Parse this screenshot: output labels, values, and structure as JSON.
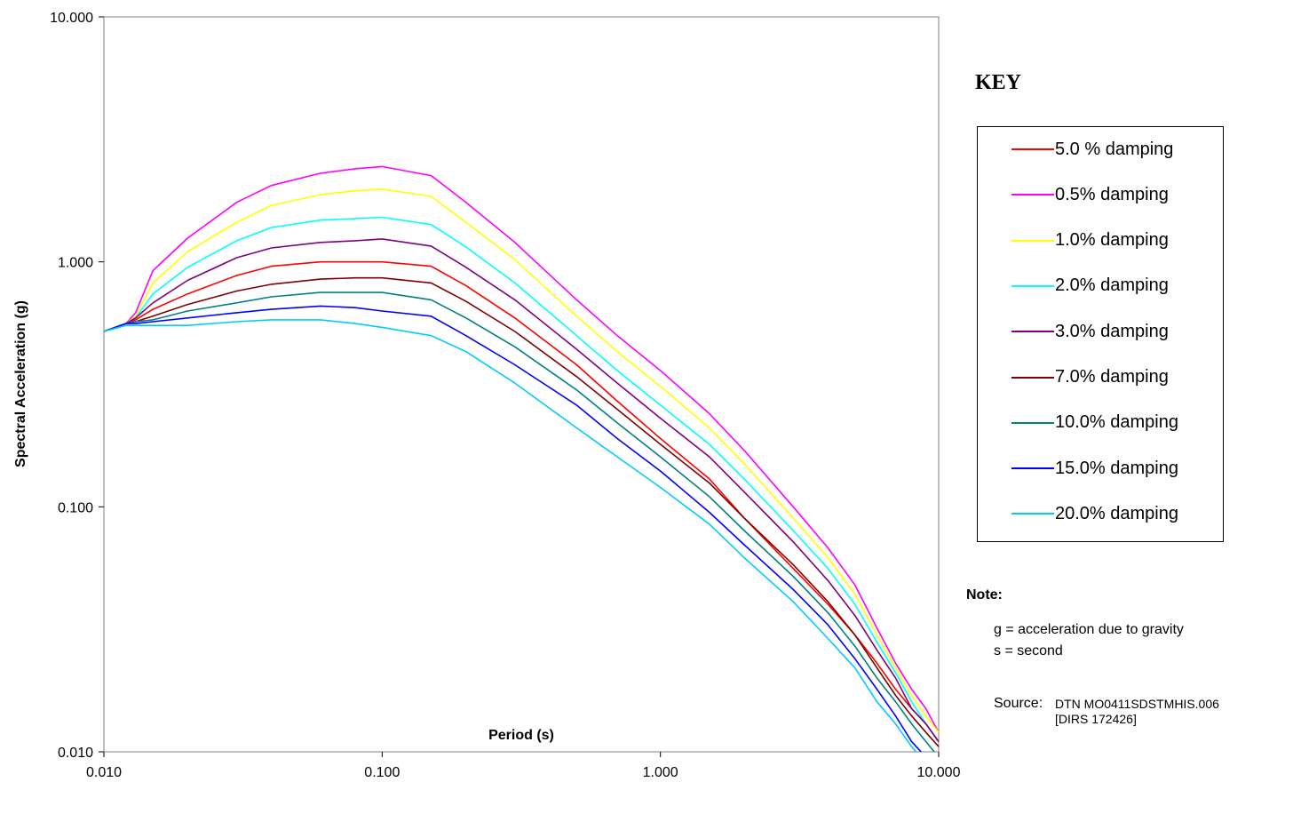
{
  "chart_data": {
    "type": "line",
    "title": "",
    "xlabel": "Period (s)",
    "ylabel": "Spectral Acceleration (g)",
    "xscale": "log",
    "yscale": "log",
    "xlim": [
      0.01,
      10
    ],
    "ylim": [
      0.01,
      10
    ],
    "x_tick_labels": [
      "0.010",
      "0.100",
      "1.000",
      "10.000"
    ],
    "y_tick_labels": [
      "10.000",
      "1.000",
      "0.100",
      "0.010"
    ],
    "grid": false,
    "legend_title": "KEY",
    "legend_position": "right",
    "x": [
      0.01,
      0.012,
      0.013,
      0.015,
      0.02,
      0.03,
      0.04,
      0.06,
      0.08,
      0.1,
      0.15,
      0.2,
      0.3,
      0.5,
      0.7,
      1.0,
      1.5,
      2.0,
      3.0,
      4.0,
      5.0,
      6.0,
      7.0,
      8.0,
      9.0,
      10.0
    ],
    "series": [
      {
        "name": "5.0 % damping",
        "color": "#ff0000",
        "values": [
          0.52,
          0.56,
          0.58,
          0.64,
          0.74,
          0.88,
          0.96,
          1.0,
          1.0,
          1.0,
          0.96,
          0.8,
          0.59,
          0.38,
          0.27,
          0.19,
          0.13,
          0.09,
          0.056,
          0.04,
          0.03,
          0.023,
          0.018,
          0.015,
          0.013,
          0.011
        ]
      },
      {
        "name": "0.5% damping",
        "color": "#ff00ff",
        "values": [
          0.52,
          0.56,
          0.62,
          0.92,
          1.25,
          1.75,
          2.05,
          2.3,
          2.4,
          2.45,
          2.25,
          1.75,
          1.2,
          0.7,
          0.5,
          0.36,
          0.24,
          0.17,
          0.1,
          0.068,
          0.048,
          0.032,
          0.023,
          0.018,
          0.015,
          0.012
        ]
      },
      {
        "name": "1.0% damping",
        "color": "#ffff00",
        "values": [
          0.52,
          0.56,
          0.6,
          0.82,
          1.1,
          1.45,
          1.7,
          1.88,
          1.95,
          1.98,
          1.85,
          1.45,
          1.02,
          0.6,
          0.43,
          0.31,
          0.21,
          0.15,
          0.09,
          0.062,
          0.044,
          0.03,
          0.022,
          0.017,
          0.014,
          0.012
        ]
      },
      {
        "name": "2.0% damping",
        "color": "#00ffff",
        "values": [
          0.52,
          0.56,
          0.59,
          0.74,
          0.95,
          1.22,
          1.38,
          1.48,
          1.5,
          1.52,
          1.42,
          1.15,
          0.82,
          0.5,
          0.36,
          0.26,
          0.18,
          0.13,
          0.08,
          0.056,
          0.04,
          0.028,
          0.021,
          0.016,
          0.013,
          0.011
        ]
      },
      {
        "name": "3.0% damping",
        "color": "#800080",
        "values": [
          0.52,
          0.56,
          0.59,
          0.68,
          0.84,
          1.04,
          1.14,
          1.2,
          1.22,
          1.24,
          1.16,
          0.95,
          0.7,
          0.44,
          0.32,
          0.23,
          0.16,
          0.115,
          0.072,
          0.05,
          0.036,
          0.026,
          0.02,
          0.015,
          0.013,
          0.011
        ]
      },
      {
        "name": "7.0% damping",
        "color": "#800000",
        "values": [
          0.52,
          0.56,
          0.57,
          0.6,
          0.67,
          0.76,
          0.81,
          0.85,
          0.86,
          0.86,
          0.82,
          0.69,
          0.52,
          0.34,
          0.25,
          0.18,
          0.125,
          0.09,
          0.058,
          0.041,
          0.03,
          0.022,
          0.017,
          0.014,
          0.012,
          0.0105
        ]
      },
      {
        "name": "10.0% damping",
        "color": "#008080",
        "values": [
          0.52,
          0.56,
          0.57,
          0.58,
          0.63,
          0.68,
          0.72,
          0.75,
          0.75,
          0.75,
          0.7,
          0.59,
          0.45,
          0.3,
          0.22,
          0.16,
          0.11,
          0.08,
          0.052,
          0.037,
          0.027,
          0.02,
          0.016,
          0.013,
          0.011,
          0.0095
        ]
      },
      {
        "name": "15.0% damping",
        "color": "#0000ff",
        "values": [
          0.52,
          0.56,
          0.56,
          0.57,
          0.59,
          0.62,
          0.64,
          0.66,
          0.65,
          0.63,
          0.6,
          0.5,
          0.38,
          0.26,
          0.19,
          0.14,
          0.095,
          0.07,
          0.046,
          0.033,
          0.024,
          0.018,
          0.014,
          0.011,
          0.0095,
          0.0085
        ]
      },
      {
        "name": "20.0% damping",
        "color": "#00ccff",
        "values": [
          0.52,
          0.55,
          0.55,
          0.55,
          0.55,
          0.57,
          0.58,
          0.58,
          0.56,
          0.54,
          0.5,
          0.43,
          0.32,
          0.21,
          0.16,
          0.12,
          0.085,
          0.062,
          0.041,
          0.029,
          0.022,
          0.016,
          0.013,
          0.0105,
          0.009,
          0.008
        ]
      }
    ]
  },
  "notes": {
    "title": "Note:",
    "lines": [
      "g = acceleration due to gravity",
      "s = second"
    ],
    "source_label": "Source:",
    "source_lines": [
      "DTN MO0411SDSTMHIS.006",
      "[DIRS 172426]"
    ]
  }
}
